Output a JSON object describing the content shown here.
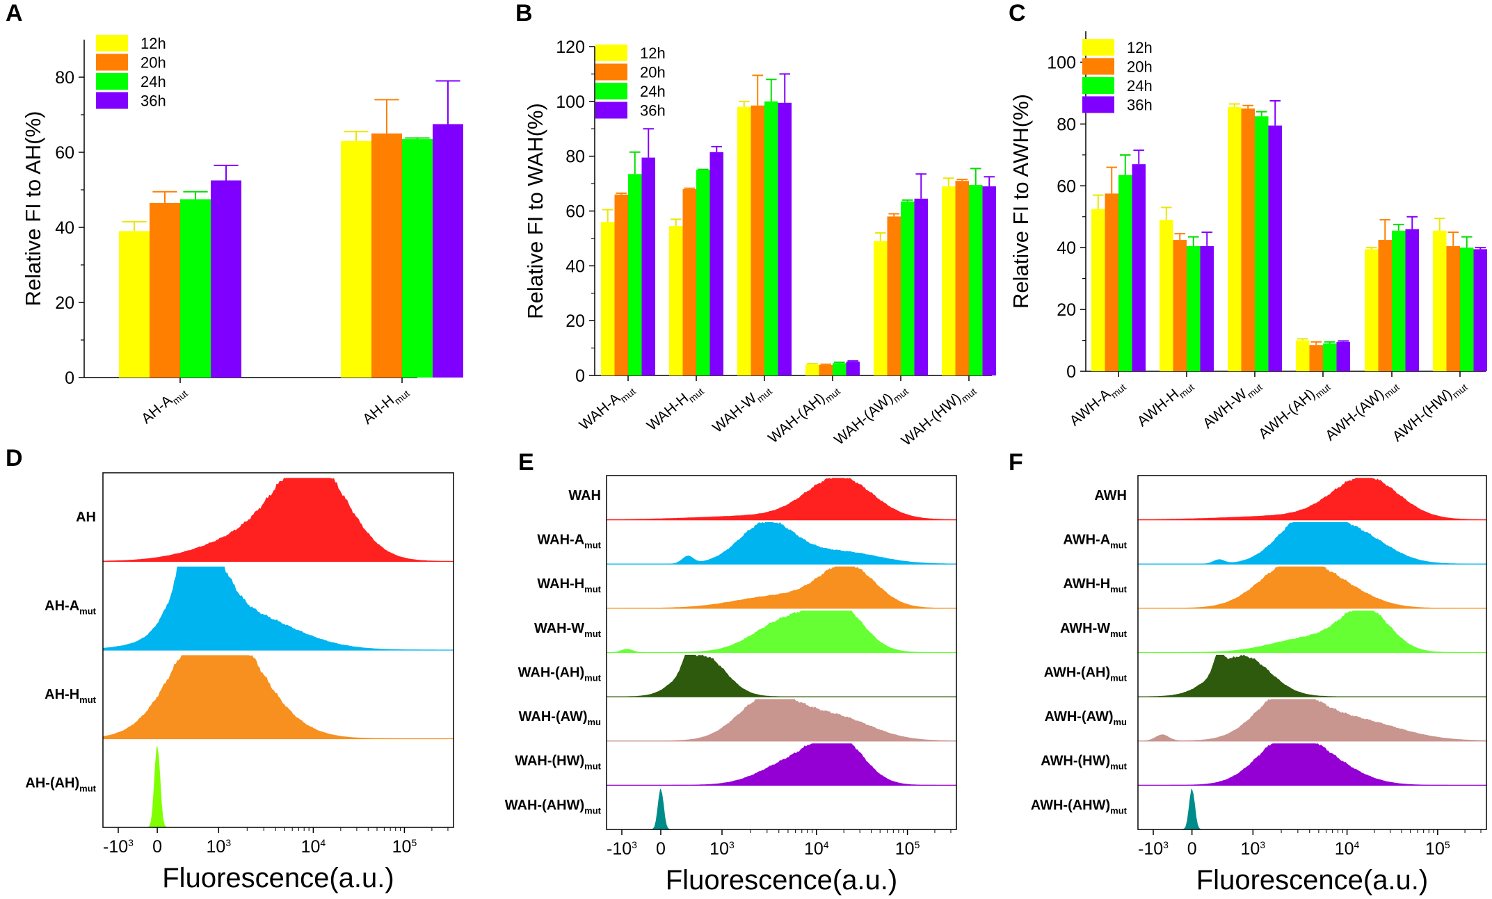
{
  "chart_data": [
    {
      "type": "bar",
      "panel": "A",
      "ylabel": "Relative FI to AH(%)",
      "ylim": [
        0,
        90
      ],
      "yticks": [
        0,
        20,
        40,
        60,
        80
      ],
      "legend": [
        "12h",
        "20h",
        "24h",
        "36h"
      ],
      "categories": [
        {
          "base": "AH-A",
          "sub": "mut"
        },
        {
          "base": "AH-H",
          "sub": "mut"
        }
      ],
      "series": [
        {
          "name": "12h",
          "values": [
            39,
            63
          ],
          "errors": [
            2.5,
            2.5
          ]
        },
        {
          "name": "20h",
          "values": [
            46.5,
            65
          ],
          "errors": [
            3,
            9
          ]
        },
        {
          "name": "24h",
          "values": [
            47.5,
            63.5
          ],
          "errors": [
            2,
            0.3
          ]
        },
        {
          "name": "36h",
          "values": [
            52.5,
            67.5
          ],
          "errors": [
            4,
            11.5
          ]
        }
      ]
    },
    {
      "type": "bar",
      "panel": "B",
      "ylabel": "Relative FI to WAH(%)",
      "ylim": [
        0,
        120
      ],
      "yticks": [
        0,
        20,
        40,
        60,
        80,
        100,
        120
      ],
      "legend": [
        "12h",
        "20h",
        "24h",
        "36h"
      ],
      "categories": [
        {
          "base": "WAH-A",
          "sub": "mut"
        },
        {
          "base": "WAH-H",
          "sub": "mut"
        },
        {
          "base": "WAH-W",
          "sub": "mut"
        },
        {
          "base": "WAH-(AH)",
          "sub": "mut"
        },
        {
          "base": "WAH-(AW)",
          "sub": "mut"
        },
        {
          "base": "WAH-(HW)",
          "sub": "mut"
        }
      ],
      "series": [
        {
          "name": "12h",
          "values": [
            56,
            54.5,
            98,
            4,
            49,
            69
          ],
          "errors": [
            4.5,
            2.5,
            2,
            0.3,
            3,
            3
          ]
        },
        {
          "name": "20h",
          "values": [
            66,
            68,
            98.5,
            3.8,
            58,
            71
          ],
          "errors": [
            0.5,
            0.3,
            11,
            0.3,
            1,
            0.5
          ]
        },
        {
          "name": "24h",
          "values": [
            73.5,
            75,
            100,
            4.5,
            63.5,
            69.5
          ],
          "errors": [
            8,
            0.2,
            8,
            0.3,
            0.5,
            6
          ]
        },
        {
          "name": "36h",
          "values": [
            79.5,
            81.5,
            99.5,
            5,
            64.5,
            69
          ],
          "errors": [
            10.5,
            2,
            10.5,
            0.3,
            9,
            3.5
          ]
        }
      ]
    },
    {
      "type": "bar",
      "panel": "C",
      "ylabel": "Relative FI to AWH(%)",
      "ylim": [
        0,
        110
      ],
      "yticks": [
        0,
        20,
        40,
        60,
        80,
        100
      ],
      "legend": [
        "12h",
        "20h",
        "24h",
        "36h"
      ],
      "categories": [
        {
          "base": "AWH-A",
          "sub": "mut"
        },
        {
          "base": "AWH-H",
          "sub": "mut"
        },
        {
          "base": "AWH-W",
          "sub": "mut"
        },
        {
          "base": "AWH-(AH)",
          "sub": "mut"
        },
        {
          "base": "AWH-(AW)",
          "sub": "mut"
        },
        {
          "base": "AWH-(HW)",
          "sub": "mut"
        }
      ],
      "series": [
        {
          "name": "12h",
          "values": [
            52.5,
            49,
            85.5,
            10,
            39.5,
            45.5
          ],
          "errors": [
            4.5,
            4,
            1,
            0.5,
            0.5,
            4
          ]
        },
        {
          "name": "20h",
          "values": [
            57.5,
            42.5,
            85,
            8.5,
            42.5,
            40.5
          ],
          "errors": [
            8.5,
            2,
            1,
            1,
            6.5,
            4.5
          ]
        },
        {
          "name": "24h",
          "values": [
            63.5,
            40.5,
            82.5,
            9,
            45.5,
            40
          ],
          "errors": [
            6.5,
            3,
            1.5,
            0.5,
            2,
            3.5
          ]
        },
        {
          "name": "36h",
          "values": [
            67,
            40.5,
            79.5,
            9.5,
            46,
            39.5
          ],
          "errors": [
            4.5,
            4.5,
            8,
            0.3,
            4,
            0.5
          ]
        }
      ]
    },
    {
      "type": "histogram",
      "panel": "D",
      "xlabel": "Fluorescence(a.u.)",
      "xticks": [
        "-10",
        "0",
        "10",
        "10",
        "10"
      ],
      "xtick_exponents": [
        "3",
        "",
        "3",
        "4",
        "5"
      ],
      "xtick_values": [
        -1000,
        0,
        1000,
        10000,
        100000
      ],
      "rows": [
        {
          "base": "AH",
          "sub": "",
          "color": "#ff2020",
          "peaks": [
            [
              10000,
              1.0,
              0.32
            ],
            [
              3000,
              0.35,
              0.5
            ]
          ]
        },
        {
          "base": "AH-A",
          "sub": "mut",
          "color": "#00b4f0",
          "peaks": [
            [
              120,
              1.0,
              0.2
            ],
            [
              1500,
              0.48,
              0.5
            ],
            [
              20,
              0.45,
              0.03
            ]
          ]
        },
        {
          "base": "AH-H",
          "sub": "mut",
          "color": "#f7901e",
          "peaks": [
            [
              300,
              1.0,
              0.35
            ],
            [
              1500,
              0.55,
              0.4
            ]
          ]
        },
        {
          "base": "AH-(AH)",
          "sub": "mut",
          "color": "#7fff00",
          "peaks": [
            [
              0,
              1.0,
              0.012
            ]
          ]
        }
      ]
    },
    {
      "type": "histogram",
      "panel": "E",
      "xlabel": "Fluorescence(a.u.)",
      "xticks": [
        "-10",
        "0",
        "10",
        "10",
        "10"
      ],
      "xtick_exponents": [
        "3",
        "",
        "3",
        "4",
        "5"
      ],
      "xtick_values": [
        -1000,
        0,
        1000,
        10000,
        100000
      ],
      "rows": [
        {
          "base": "WAH",
          "sub": "",
          "color": "#ff2020",
          "peaks": [
            [
              18000,
              1.0,
              0.3
            ],
            [
              3000,
              0.1,
              0.6
            ]
          ]
        },
        {
          "base": "WAH-A",
          "sub": "mut",
          "color": "#00b4f0",
          "peaks": [
            [
              3000,
              1.0,
              0.25
            ],
            [
              18000,
              0.3,
              0.35
            ],
            [
              20,
              0.18,
              0.04
            ]
          ]
        },
        {
          "base": "WAH-H",
          "sub": "mut",
          "color": "#f7901e",
          "peaks": [
            [
              22000,
              1.0,
              0.25
            ],
            [
              4000,
              0.3,
              0.4
            ]
          ]
        },
        {
          "base": "WAH-W",
          "sub": "mut",
          "color": "#66ff33",
          "peaks": [
            [
              18000,
              1.0,
              0.22
            ],
            [
              5000,
              0.8,
              0.3
            ],
            [
              -400,
              0.08,
              0.04
            ]
          ]
        },
        {
          "base": "WAH-(AH)",
          "sub": "mut",
          "color": "#2d5a0c",
          "peaks": [
            [
              120,
              1.0,
              0.2
            ],
            [
              20,
              0.4,
              0.03
            ]
          ]
        },
        {
          "base": "WAH-(AW)",
          "sub": "mu",
          "color": "#c9958f",
          "peaks": [
            [
              3000,
              1.0,
              0.27
            ],
            [
              15000,
              0.6,
              0.35
            ]
          ]
        },
        {
          "base": "WAH-(HW)",
          "sub": "mut",
          "color": "#9400d3",
          "peaks": [
            [
              18000,
              1.0,
              0.22
            ],
            [
              6000,
              0.6,
              0.3
            ]
          ]
        },
        {
          "base": "WAH-(AHW)",
          "sub": "mut",
          "color": "#008b8b",
          "peaks": [
            [
              0,
              1.0,
              0.012
            ]
          ]
        }
      ]
    },
    {
      "type": "histogram",
      "panel": "F",
      "xlabel": "Fluorescence(a.u.)",
      "xticks": [
        "-10",
        "0",
        "10",
        "10",
        "10"
      ],
      "xtick_exponents": [
        "3",
        "",
        "3",
        "4",
        "5"
      ],
      "xtick_values": [
        -1000,
        0,
        1000,
        10000,
        100000
      ],
      "rows": [
        {
          "base": "AWH",
          "sub": "",
          "color": "#ff2020",
          "peaks": [
            [
              16000,
              1.0,
              0.3
            ],
            [
              3000,
              0.1,
              0.6
            ]
          ]
        },
        {
          "base": "AWH-A",
          "sub": "mut",
          "color": "#00b4f0",
          "peaks": [
            [
              3500,
              1.0,
              0.25
            ],
            [
              12000,
              0.75,
              0.3
            ],
            [
              20,
              0.1,
              0.04
            ]
          ]
        },
        {
          "base": "AWH-H",
          "sub": "mut",
          "color": "#f7901e",
          "peaks": [
            [
              2500,
              1.0,
              0.3
            ],
            [
              8000,
              0.45,
              0.3
            ]
          ]
        },
        {
          "base": "AWH-W",
          "sub": "mut",
          "color": "#66ff33",
          "peaks": [
            [
              16000,
              1.0,
              0.22
            ],
            [
              4000,
              0.35,
              0.35
            ]
          ]
        },
        {
          "base": "AWH-(AH)",
          "sub": "mut",
          "color": "#2d5a0c",
          "peaks": [
            [
              300,
              1.0,
              0.25
            ],
            [
              20,
              0.5,
              0.03
            ]
          ]
        },
        {
          "base": "AWH-(AW)",
          "sub": "mu",
          "color": "#c9958f",
          "peaks": [
            [
              2200,
              1.0,
              0.27
            ],
            [
              10000,
              0.55,
              0.45
            ],
            [
              -200,
              0.15,
              0.05
            ]
          ]
        },
        {
          "base": "AWH-(HW)",
          "sub": "mut",
          "color": "#9400d3",
          "peaks": [
            [
              2200,
              1.0,
              0.27
            ],
            [
              6000,
              0.5,
              0.3
            ]
          ]
        },
        {
          "base": "AWH-(AHW)",
          "sub": "mut",
          "color": "#008b8b",
          "peaks": [
            [
              0,
              1.0,
              0.012
            ]
          ]
        }
      ]
    }
  ],
  "panel_letters": [
    "A",
    "B",
    "C",
    "D",
    "E",
    "F"
  ],
  "colors": {
    "12h": "#ffff00",
    "20h": "#ff8000",
    "24h": "#00ff00",
    "36h": "#8000ff"
  }
}
